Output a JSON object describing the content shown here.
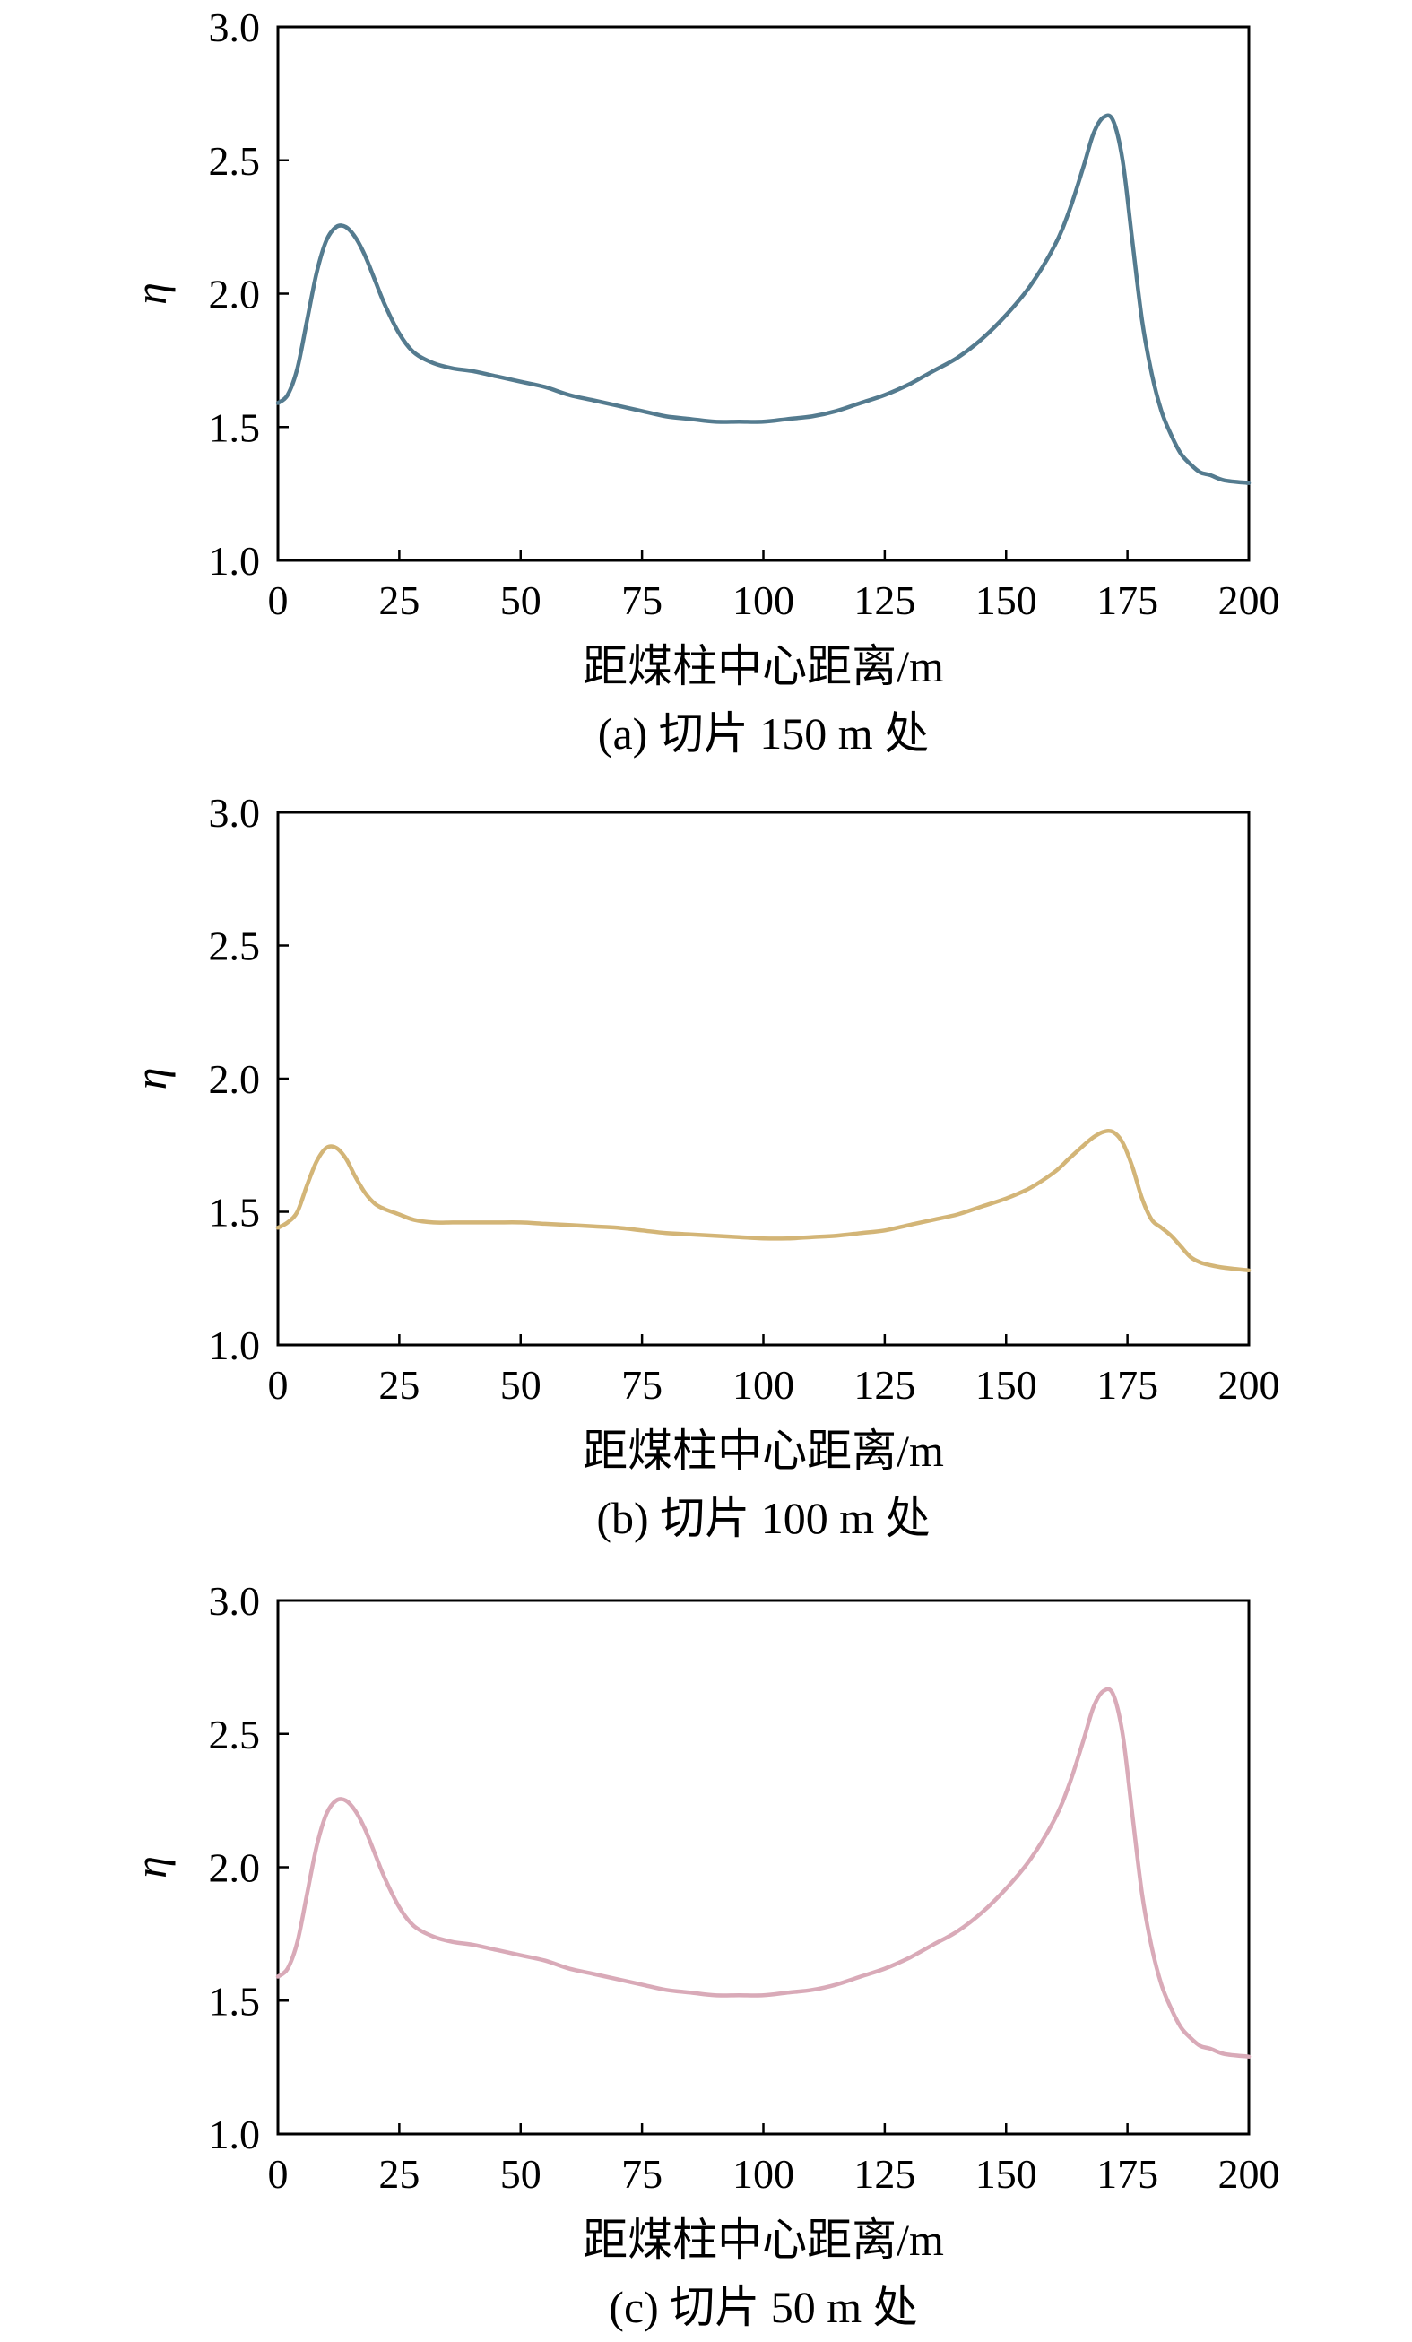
{
  "chart_data": [
    {
      "type": "line",
      "caption": "(a) 切片 150 m 处",
      "xlabel": "距煤柱中心距离/m",
      "ylabel": "η",
      "xlim": [
        0,
        200
      ],
      "ylim": [
        1.0,
        3.0
      ],
      "xticks": [
        0,
        25,
        50,
        75,
        100,
        125,
        150,
        175,
        200
      ],
      "yticks": [
        1.0,
        1.5,
        2.0,
        2.5,
        3.0
      ],
      "color": "#547b8f",
      "series": [
        {
          "x": [
            0,
            2,
            4,
            6,
            8,
            10,
            12,
            14,
            16,
            18,
            20,
            22,
            25,
            28,
            32,
            36,
            40,
            45,
            50,
            55,
            60,
            65,
            70,
            75,
            80,
            85,
            90,
            95,
            100,
            105,
            110,
            115,
            120,
            125,
            130,
            135,
            140,
            145,
            150,
            155,
            160,
            163,
            166,
            168,
            170,
            172,
            174,
            176,
            178,
            180,
            182,
            184,
            186,
            188,
            190,
            192,
            195,
            200
          ],
          "y": [
            1.59,
            1.62,
            1.72,
            1.9,
            2.08,
            2.2,
            2.25,
            2.25,
            2.21,
            2.14,
            2.05,
            1.96,
            1.85,
            1.78,
            1.74,
            1.72,
            1.71,
            1.69,
            1.67,
            1.65,
            1.62,
            1.6,
            1.58,
            1.56,
            1.54,
            1.53,
            1.52,
            1.52,
            1.52,
            1.53,
            1.54,
            1.56,
            1.59,
            1.62,
            1.66,
            1.71,
            1.76,
            1.83,
            1.92,
            2.03,
            2.18,
            2.31,
            2.48,
            2.6,
            2.66,
            2.65,
            2.5,
            2.2,
            1.9,
            1.7,
            1.56,
            1.47,
            1.4,
            1.36,
            1.33,
            1.32,
            1.3,
            1.29
          ]
        }
      ]
    },
    {
      "type": "line",
      "caption": "(b) 切片 100 m 处",
      "xlabel": "距煤柱中心距离/m",
      "ylabel": "η",
      "xlim": [
        0,
        200
      ],
      "ylim": [
        1.0,
        3.0
      ],
      "xticks": [
        0,
        25,
        50,
        75,
        100,
        125,
        150,
        175,
        200
      ],
      "yticks": [
        1.0,
        1.5,
        2.0,
        2.5,
        3.0
      ],
      "color": "#d3b577",
      "series": [
        {
          "x": [
            0,
            2,
            4,
            6,
            8,
            10,
            12,
            14,
            16,
            18,
            20,
            22,
            25,
            28,
            32,
            36,
            40,
            45,
            50,
            55,
            60,
            65,
            70,
            75,
            80,
            85,
            90,
            95,
            100,
            105,
            110,
            115,
            120,
            125,
            130,
            135,
            140,
            145,
            150,
            155,
            160,
            163,
            166,
            168,
            170,
            172,
            174,
            176,
            178,
            180,
            182,
            184,
            186,
            188,
            190,
            192,
            195,
            200
          ],
          "y": [
            1.44,
            1.46,
            1.5,
            1.6,
            1.69,
            1.74,
            1.74,
            1.7,
            1.63,
            1.57,
            1.53,
            1.51,
            1.49,
            1.47,
            1.46,
            1.46,
            1.46,
            1.46,
            1.46,
            1.455,
            1.45,
            1.445,
            1.44,
            1.43,
            1.42,
            1.415,
            1.41,
            1.405,
            1.4,
            1.4,
            1.405,
            1.41,
            1.42,
            1.43,
            1.45,
            1.47,
            1.49,
            1.52,
            1.55,
            1.59,
            1.65,
            1.7,
            1.75,
            1.78,
            1.8,
            1.8,
            1.76,
            1.67,
            1.55,
            1.47,
            1.44,
            1.41,
            1.37,
            1.33,
            1.31,
            1.3,
            1.29,
            1.28
          ]
        }
      ]
    },
    {
      "type": "line",
      "caption": "(c) 切片 50 m 处",
      "xlabel": "距煤柱中心距离/m",
      "ylabel": "η",
      "xlim": [
        0,
        200
      ],
      "ylim": [
        1.0,
        3.0
      ],
      "xticks": [
        0,
        25,
        50,
        75,
        100,
        125,
        150,
        175,
        200
      ],
      "yticks": [
        1.0,
        1.5,
        2.0,
        2.5,
        3.0
      ],
      "color": "#d9aab8",
      "series": [
        {
          "x": [
            0,
            2,
            4,
            6,
            8,
            10,
            12,
            14,
            16,
            18,
            20,
            22,
            25,
            28,
            32,
            36,
            40,
            45,
            50,
            55,
            60,
            65,
            70,
            75,
            80,
            85,
            90,
            95,
            100,
            105,
            110,
            115,
            120,
            125,
            130,
            135,
            140,
            145,
            150,
            155,
            160,
            163,
            166,
            168,
            170,
            172,
            174,
            176,
            178,
            180,
            182,
            184,
            186,
            188,
            190,
            192,
            195,
            200
          ],
          "y": [
            1.59,
            1.62,
            1.72,
            1.9,
            2.08,
            2.2,
            2.25,
            2.25,
            2.21,
            2.14,
            2.05,
            1.96,
            1.85,
            1.78,
            1.74,
            1.72,
            1.71,
            1.69,
            1.67,
            1.65,
            1.62,
            1.6,
            1.58,
            1.56,
            1.54,
            1.53,
            1.52,
            1.52,
            1.52,
            1.53,
            1.54,
            1.56,
            1.59,
            1.62,
            1.66,
            1.71,
            1.76,
            1.83,
            1.92,
            2.03,
            2.18,
            2.31,
            2.48,
            2.6,
            2.66,
            2.65,
            2.5,
            2.2,
            1.9,
            1.7,
            1.56,
            1.47,
            1.4,
            1.36,
            1.33,
            1.32,
            1.3,
            1.29
          ]
        }
      ]
    }
  ]
}
